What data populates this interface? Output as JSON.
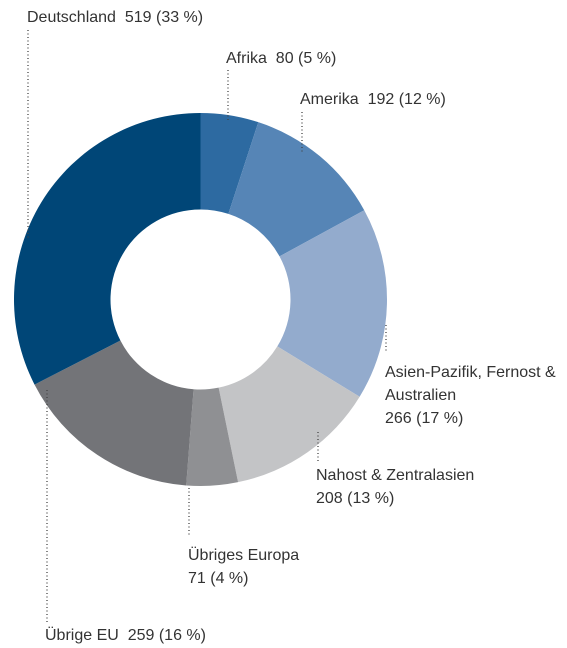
{
  "chart_data": {
    "type": "donut",
    "categories": [
      "Afrika",
      "Amerika",
      "Asien-Pazifik, Fernost & Australien",
      "Nahost & Zentralasien",
      "Übriges Europa",
      "Übrige EU",
      "Deutschland"
    ],
    "values": [
      80,
      192,
      266,
      208,
      71,
      259,
      519
    ],
    "value_labels": [
      "80 (5 %)",
      "192 (12 %)",
      "266 (17 %)",
      "208 (13 %)",
      "71 (4 %)",
      "259 (16 %)",
      "519 (33 %)"
    ],
    "colors": [
      "#2d6aa1",
      "#5685b6",
      "#93abcd",
      "#c3c4c6",
      "#8f9093",
      "#737478",
      "#004677"
    ]
  }
}
